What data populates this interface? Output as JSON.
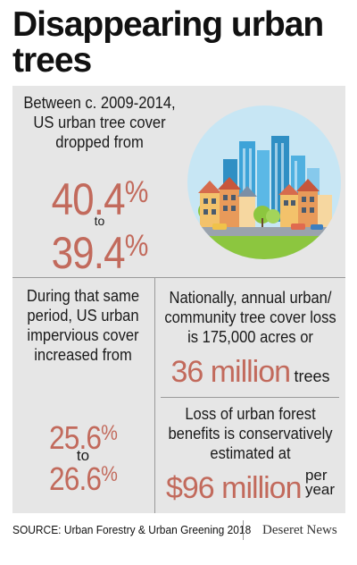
{
  "title": "Disappearing urban trees",
  "section1": {
    "text": "Between c. 2009-2014, US urban tree cover dropped from",
    "value_from": "40.4",
    "connector": "to",
    "value_to": "39.4",
    "unit": "%"
  },
  "section2": {
    "text": "During that same period, US urban impervious cover increased from",
    "value_from": "25.6",
    "connector": "to",
    "value_to": "26.6",
    "unit": "%"
  },
  "section3": {
    "text": "Nationally, annual urban/ community tree cover loss is 175,000 acres or",
    "highlight": "36 million",
    "highlight_unit": "trees"
  },
  "section4": {
    "text": "Loss of urban forest benefits is conservatively estimated at",
    "highlight": "$96 million",
    "per_top": "per",
    "per_bottom": "year"
  },
  "footer": {
    "source": "SOURCE: Urban Forestry & Urban Greening 2018",
    "brand": "Deseret News"
  },
  "illustration": {
    "icon": "city-buildings-icon"
  },
  "colors": {
    "accent": "#c26a5c",
    "panel": "#e6e6e6",
    "sky_circle": "#c7e6f4",
    "grass": "#8cc63f"
  }
}
